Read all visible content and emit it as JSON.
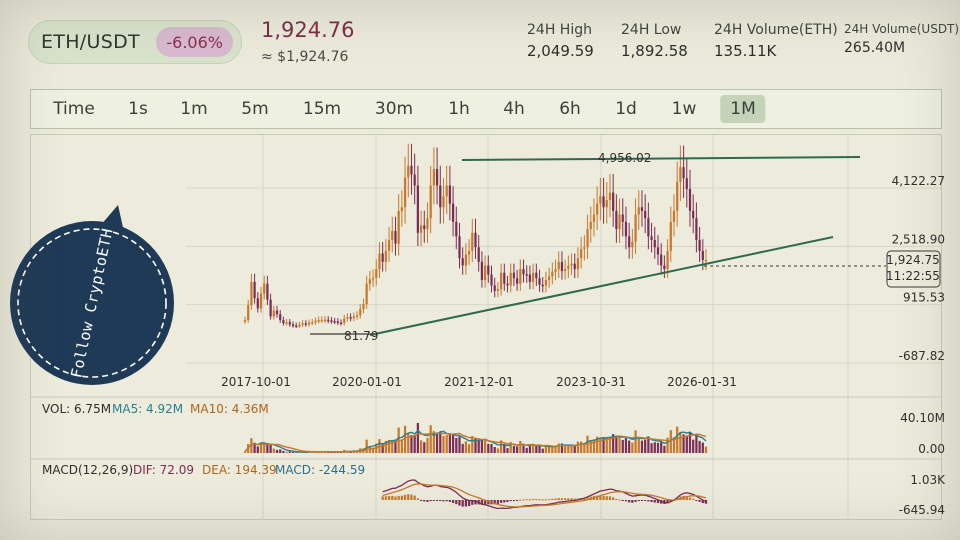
{
  "header": {
    "pair": "ETH/USDT",
    "change": "-6.06%",
    "price": "1,924.76",
    "price_usd": "≈ $1,924.76",
    "stats": [
      {
        "label": "24H High",
        "value": "2,049.59"
      },
      {
        "label": "24H Low",
        "value": "1,892.58"
      },
      {
        "label": "24H Volume(ETH)",
        "value": "135.11K"
      },
      {
        "label": "24H Volume(USDT)",
        "value": "265.40M"
      }
    ]
  },
  "intervals": {
    "items": [
      "Time",
      "1s",
      "1m",
      "5m",
      "15m",
      "30m",
      "1h",
      "4h",
      "6h",
      "1d",
      "1w",
      "1M"
    ],
    "active": "1M"
  },
  "badge": {
    "text": "Follow CryptoETH"
  },
  "colors": {
    "background": "#ebeadb",
    "up": "#c8782a",
    "down": "#7a2e55",
    "trendline": "#2f6a4f",
    "accent": "#c5d3b9",
    "badge": "#1f3a57"
  },
  "chart_data": {
    "type": "candlestick",
    "price_axis_ticks": [
      "4,122.27",
      "2,518.90",
      "915.53",
      "-687.82"
    ],
    "date_axis_ticks": [
      "2017-10-01",
      "2020-01-01",
      "2021-12-01",
      "2023-10-31",
      "2026-01-31"
    ],
    "annotations": {
      "high": "4,956.02",
      "low": "81.79"
    },
    "current_price": "1,924.75",
    "countdown": "11:22:55",
    "scale": {
      "price_min": -687.82,
      "price_max": 4122.27
    },
    "series": [
      {
        "values": [
          300,
          710,
          1350,
          900,
          620,
          1030,
          1300,
          860
        ]
      },
      {
        "values": [
          400,
          560,
          460,
          300,
          215,
          240,
          180,
          150
        ]
      },
      {
        "values": [
          140,
          170,
          210,
          180,
          230,
          240,
          280,
          300
        ]
      },
      {
        "values": [
          305,
          310,
          290,
          270,
          260,
          230,
          220,
          340
        ]
      },
      {
        "values": [
          380,
          350,
          400,
          430,
          600,
          740,
          1300,
          1420
        ]
      },
      {
        "values": [
          1460,
          1700,
          2130,
          1900,
          2200,
          2500,
          2750,
          2400
        ]
      },
      {
        "values": [
          3300,
          3400,
          4220,
          4540,
          4300,
          4000,
          2700,
          2900
        ]
      },
      {
        "values": [
          2800,
          3100,
          4000,
          4450,
          4000,
          3400,
          3700,
          4000
        ]
      },
      {
        "values": [
          3500,
          3000,
          2600,
          2000,
          1800,
          2100,
          2200,
          2700
        ]
      },
      {
        "values": [
          2300,
          1900,
          1400,
          1800,
          1550,
          1250,
          1100,
          1150
        ]
      },
      {
        "values": [
          1600,
          1300,
          1250,
          1600,
          1450,
          1300,
          1700,
          1560
        ]
      },
      {
        "values": [
          1550,
          1350,
          1600,
          1450,
          1270,
          1250,
          1400,
          1500
        ]
      },
      {
        "values": [
          1630,
          1700,
          1900,
          1650,
          1700,
          1800,
          1850,
          1700
        ]
      },
      {
        "values": [
          2000,
          2250,
          2300,
          2800,
          3000,
          3200,
          3500,
          3700
        ]
      },
      {
        "values": [
          3400,
          3600,
          3800,
          3300,
          2800,
          3200,
          3000,
          2600
        ]
      },
      {
        "values": [
          2300,
          2450,
          3200,
          3400,
          3300,
          3100,
          2600,
          2500
        ]
      },
      {
        "values": [
          2300,
          2100,
          1800,
          1700,
          2200,
          3000,
          3300,
          4100
        ]
      },
      {
        "values": [
          4500,
          4200,
          3900,
          3300,
          3100,
          2500,
          2200,
          1950
        ]
      },
      {
        "values": [
          1950
        ]
      }
    ],
    "volume": {
      "label": "VOL: 6.75M",
      "ma5": "MA5: 4.92M",
      "ma10": "MA10: 4.36M",
      "ticks": [
        "40.10M",
        "0.00"
      ]
    },
    "macd": {
      "label": "MACD(12,26,9)",
      "dif": "DIF: 72.09",
      "dea": "DEA: 194.39",
      "macd": "MACD: -244.59",
      "ticks": [
        "1.03K",
        "-645.94"
      ]
    }
  }
}
